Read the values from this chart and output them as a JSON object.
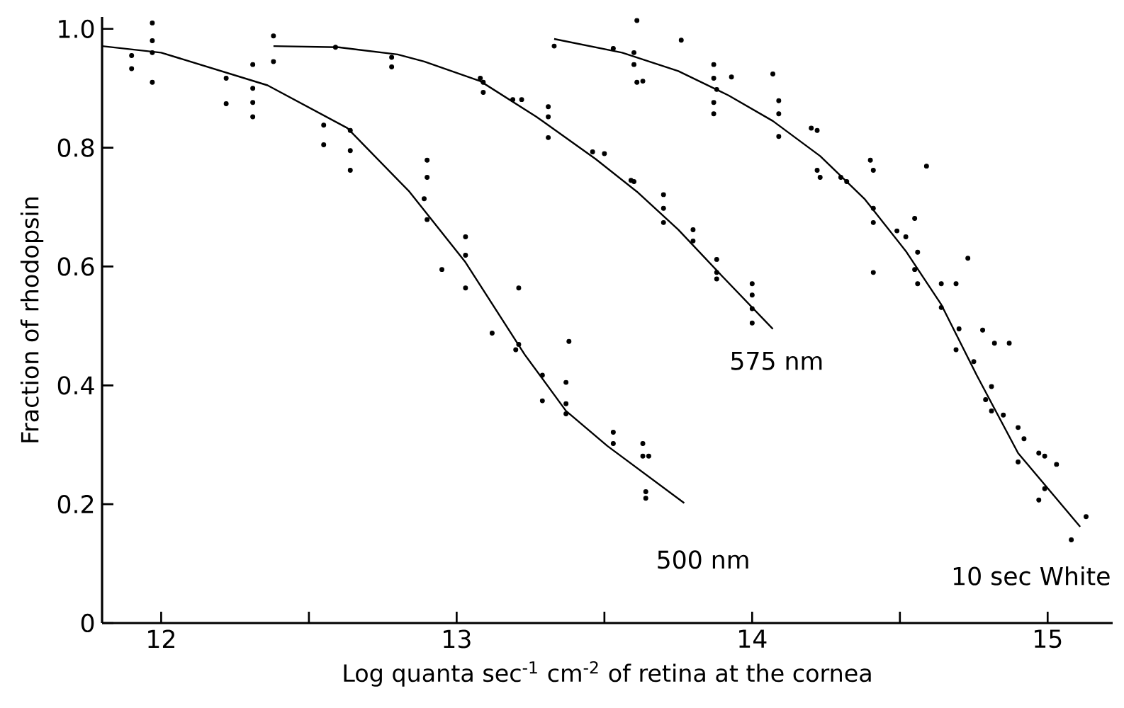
{
  "chart_data": {
    "type": "line",
    "xlabel": "Log quanta sec$^{-1}$ cm$^{-2}$ of retina at the cornea",
    "ylabel": "Fraction of rhodopsin",
    "xlim": [
      11.8,
      15.22
    ],
    "ylim": [
      0,
      1.02
    ],
    "xticks": [
      12,
      {
        "value": 12.5,
        "label": null
      },
      13,
      {
        "value": 13.5,
        "label": null
      },
      14,
      {
        "value": 14.5,
        "label": null
      },
      15
    ],
    "yticks": [
      0,
      0.2,
      0.4,
      0.6,
      0.8,
      {
        "value": 1.0,
        "label": "1.0"
      }
    ],
    "grid": false,
    "series": [
      {
        "color": "#000000",
        "x": [
          11.8,
          12.0,
          12.36,
          12.63,
          12.84,
          13.03,
          13.23,
          13.37,
          13.51,
          13.77
        ],
        "values": [
          0.971,
          0.96,
          0.905,
          0.833,
          0.726,
          0.607,
          0.452,
          0.357,
          0.298,
          0.202
        ]
      },
      {
        "color": "#000000",
        "x": [
          12.38,
          12.6,
          12.8,
          12.89,
          13.08,
          13.27,
          13.47,
          13.61,
          13.75,
          13.9,
          14.07
        ],
        "values": [
          0.971,
          0.969,
          0.957,
          0.945,
          0.912,
          0.852,
          0.781,
          0.726,
          0.662,
          0.583,
          0.495
        ]
      },
      {
        "color": "#000000",
        "x": [
          13.33,
          13.56,
          13.75,
          13.92,
          14.07,
          14.23,
          14.38,
          14.52,
          14.64,
          14.76,
          14.9,
          15.11
        ],
        "values": [
          0.983,
          0.96,
          0.929,
          0.888,
          0.845,
          0.786,
          0.714,
          0.626,
          0.536,
          0.417,
          0.286,
          0.162
        ]
      },
      {
        "type": "scatter",
        "color": "#000000",
        "x": [
          11.9,
          11.9,
          11.97,
          11.97,
          11.97,
          11.97,
          12.22,
          12.22,
          12.31,
          12.31,
          12.31,
          12.31,
          12.55,
          12.55,
          12.64,
          12.64,
          12.64,
          12.9,
          12.9,
          12.9,
          12.89,
          12.95,
          13.03,
          13.03,
          13.03,
          13.21,
          13.12,
          13.2,
          13.21,
          13.29,
          13.29,
          13.37,
          13.37,
          13.37,
          13.38,
          13.53,
          13.53,
          13.63,
          13.63,
          13.64,
          13.64,
          13.65
        ],
        "values": [
          0.955,
          0.933,
          1.01,
          0.98,
          0.96,
          0.91,
          0.917,
          0.874,
          0.94,
          0.9,
          0.876,
          0.852,
          0.838,
          0.805,
          0.829,
          0.795,
          0.762,
          0.779,
          0.75,
          0.679,
          0.714,
          0.595,
          0.65,
          0.619,
          0.564,
          0.564,
          0.488,
          0.46,
          0.469,
          0.417,
          0.374,
          0.405,
          0.369,
          0.352,
          0.474,
          0.321,
          0.302,
          0.302,
          0.281,
          0.221,
          0.21,
          0.281
        ]
      },
      {
        "type": "scatter",
        "color": "#000000",
        "x": [
          12.38,
          12.38,
          12.59,
          12.78,
          12.78,
          13.09,
          13.09,
          13.08,
          13.19,
          13.22,
          13.31,
          13.31,
          13.31,
          13.46,
          13.5,
          13.59,
          13.6,
          13.7,
          13.7,
          13.7,
          13.8,
          13.8,
          13.88,
          13.88,
          13.88,
          14.0,
          14.0,
          14.0,
          14.0
        ],
        "values": [
          0.988,
          0.945,
          0.969,
          0.952,
          0.936,
          0.91,
          0.893,
          0.917,
          0.881,
          0.881,
          0.869,
          0.852,
          0.817,
          0.793,
          0.79,
          0.745,
          0.743,
          0.721,
          0.698,
          0.674,
          0.662,
          0.643,
          0.612,
          0.59,
          0.579,
          0.571,
          0.552,
          0.529,
          0.505
        ]
      },
      {
        "type": "scatter",
        "color": "#000000",
        "x": [
          13.61,
          13.76,
          13.33,
          13.53,
          13.6,
          13.6,
          13.61,
          13.63,
          13.87,
          13.87,
          13.88,
          13.87,
          13.87,
          13.93,
          14.07,
          14.09,
          14.09,
          14.09,
          14.2,
          14.22,
          14.22,
          14.23,
          14.3,
          14.32,
          14.4,
          14.41,
          14.41,
          14.41,
          14.59,
          14.55,
          14.49,
          14.52,
          14.56,
          14.55,
          14.56,
          14.41,
          14.73,
          14.64,
          14.69,
          14.64,
          14.7,
          14.78,
          14.87,
          14.69,
          14.82,
          14.75,
          14.81,
          14.79,
          14.81,
          14.85,
          14.9,
          14.92,
          14.97,
          14.99,
          15.03,
          14.9,
          14.99,
          14.97,
          15.13,
          15.08
        ],
        "values": [
          1.014,
          0.981,
          0.971,
          0.967,
          0.96,
          0.94,
          0.91,
          0.912,
          0.94,
          0.917,
          0.898,
          0.876,
          0.857,
          0.919,
          0.924,
          0.879,
          0.857,
          0.819,
          0.833,
          0.829,
          0.762,
          0.75,
          0.75,
          0.743,
          0.779,
          0.762,
          0.698,
          0.674,
          0.769,
          0.681,
          0.66,
          0.65,
          0.624,
          0.595,
          0.571,
          0.59,
          0.614,
          0.571,
          0.571,
          0.531,
          0.495,
          0.493,
          0.471,
          0.46,
          0.471,
          0.44,
          0.398,
          0.376,
          0.357,
          0.35,
          0.329,
          0.31,
          0.286,
          0.281,
          0.267,
          0.271,
          0.226,
          0.207,
          0.179,
          0.14
        ]
      }
    ],
    "annotations": [
      "500 nm",
      "575 nm",
      "10 sec White"
    ]
  }
}
